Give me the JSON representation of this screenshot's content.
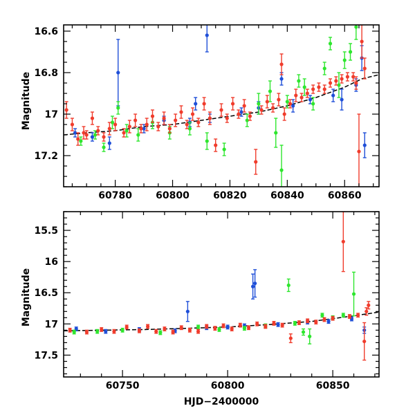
{
  "chart_data": [
    {
      "type": "scatter",
      "title": "",
      "xlabel": "",
      "ylabel": "Magnitude",
      "xlim": [
        60762,
        60872
      ],
      "ylim": [
        17.35,
        16.57
      ],
      "y_inverted": true,
      "grid": false,
      "xticks": [
        60780,
        60800,
        60820,
        60840,
        60860
      ],
      "yticks": [
        16.6,
        16.8,
        17,
        17.2
      ],
      "ytick_labels": [
        "16.6",
        "16.8",
        "17",
        "17.2"
      ],
      "colors": {
        "blue": "#1f4fd8",
        "green": "#2ee62e",
        "red": "#f03c2c",
        "fit": "#000000"
      },
      "trend": {
        "x": [
          60762,
          60770,
          60780,
          60790,
          60800,
          60810,
          60820,
          60830,
          60840,
          60850,
          60860,
          60866,
          60872
        ],
        "y": [
          17.1,
          17.09,
          17.08,
          17.06,
          17.05,
          17.03,
          17.01,
          16.99,
          16.96,
          16.92,
          16.87,
          16.83,
          16.81
        ]
      },
      "series": [
        {
          "color": "blue",
          "points": [
            [
              60766,
              17.09,
              0.02
            ],
            [
              60772,
              17.11,
              0.02
            ],
            [
              60778,
              17.14,
              0.03
            ],
            [
              60781,
              16.8,
              0.16
            ],
            [
              60790,
              17.07,
              0.02
            ],
            [
              60797,
              17.03,
              0.02
            ],
            [
              60806,
              17.04,
              0.02
            ],
            [
              60808,
              16.95,
              0.03
            ],
            [
              60812,
              16.62,
              0.08
            ],
            [
              60813,
              17.02,
              0.02
            ],
            [
              60824,
              16.99,
              0.02
            ],
            [
              60830,
              16.97,
              0.03
            ],
            [
              60838,
              16.83,
              0.03
            ],
            [
              60842,
              16.96,
              0.03
            ],
            [
              60848,
              16.93,
              0.02
            ],
            [
              60856,
              16.91,
              0.03
            ],
            [
              60859,
              16.93,
              0.05
            ],
            [
              60864,
              16.86,
              0.03
            ],
            [
              60866,
              16.73,
              0.06
            ],
            [
              60867,
              17.15,
              0.06
            ]
          ]
        },
        {
          "color": "green",
          "points": [
            [
              60768,
              17.13,
              0.02
            ],
            [
              60773,
              17.1,
              0.02
            ],
            [
              60776,
              17.16,
              0.02
            ],
            [
              60779,
              17.04,
              0.03
            ],
            [
              60781,
              16.97,
              0.03
            ],
            [
              60784,
              17.08,
              0.03
            ],
            [
              60788,
              17.1,
              0.03
            ],
            [
              60793,
              17.04,
              0.03
            ],
            [
              60799,
              17.09,
              0.03
            ],
            [
              60806,
              17.07,
              0.03
            ],
            [
              60812,
              17.13,
              0.04
            ],
            [
              60818,
              17.17,
              0.03
            ],
            [
              60826,
              17.03,
              0.03
            ],
            [
              60830,
              16.95,
              0.05
            ],
            [
              60834,
              16.89,
              0.05
            ],
            [
              60836,
              17.09,
              0.07
            ],
            [
              60838,
              17.27,
              0.12
            ],
            [
              60840,
              16.94,
              0.03
            ],
            [
              60844,
              16.84,
              0.03
            ],
            [
              60846,
              16.87,
              0.04
            ],
            [
              60849,
              16.95,
              0.03
            ],
            [
              60853,
              16.78,
              0.03
            ],
            [
              60855,
              16.66,
              0.03
            ],
            [
              60858,
              16.86,
              0.06
            ],
            [
              60860,
              16.74,
              0.04
            ],
            [
              60862,
              16.7,
              0.04
            ],
            [
              60864,
              16.58,
              0.06
            ]
          ]
        },
        {
          "color": "red",
          "points": [
            [
              60763,
              16.98,
              0.04
            ],
            [
              60765,
              17.05,
              0.03
            ],
            [
              60767,
              17.12,
              0.03
            ],
            [
              60769,
              17.09,
              0.03
            ],
            [
              60770,
              17.1,
              0.02
            ],
            [
              60772,
              17.02,
              0.03
            ],
            [
              60774,
              17.08,
              0.02
            ],
            [
              60776,
              17.11,
              0.02
            ],
            [
              60778,
              17.07,
              0.03
            ],
            [
              60780,
              17.05,
              0.03
            ],
            [
              60783,
              17.09,
              0.02
            ],
            [
              60785,
              17.06,
              0.03
            ],
            [
              60787,
              17.03,
              0.03
            ],
            [
              60789,
              17.07,
              0.02
            ],
            [
              60791,
              17.05,
              0.03
            ],
            [
              60793,
              17.01,
              0.03
            ],
            [
              60795,
              17.06,
              0.02
            ],
            [
              60797,
              17.02,
              0.03
            ],
            [
              60799,
              17.07,
              0.02
            ],
            [
              60801,
              17.03,
              0.03
            ],
            [
              60803,
              16.99,
              0.03
            ],
            [
              60805,
              17.05,
              0.02
            ],
            [
              60807,
              17.0,
              0.03
            ],
            [
              60809,
              17.04,
              0.02
            ],
            [
              60811,
              16.95,
              0.03
            ],
            [
              60813,
              17.02,
              0.03
            ],
            [
              60815,
              17.15,
              0.03
            ],
            [
              60817,
              16.98,
              0.03
            ],
            [
              60819,
              17.02,
              0.02
            ],
            [
              60821,
              16.95,
              0.03
            ],
            [
              60823,
              17.0,
              0.02
            ],
            [
              60825,
              16.96,
              0.03
            ],
            [
              60827,
              17.01,
              0.02
            ],
            [
              60829,
              17.23,
              0.06
            ],
            [
              60831,
              16.98,
              0.02
            ],
            [
              60833,
              16.94,
              0.03
            ],
            [
              60835,
              16.97,
              0.02
            ],
            [
              60837,
              16.93,
              0.03
            ],
            [
              60838,
              16.76,
              0.05
            ],
            [
              60839,
              17.0,
              0.03
            ],
            [
              60841,
              16.95,
              0.02
            ],
            [
              60843,
              16.91,
              0.03
            ],
            [
              60845,
              16.92,
              0.02
            ],
            [
              60847,
              16.9,
              0.02
            ],
            [
              60849,
              16.88,
              0.02
            ],
            [
              60851,
              16.87,
              0.02
            ],
            [
              60853,
              16.88,
              0.02
            ],
            [
              60855,
              16.85,
              0.02
            ],
            [
              60857,
              16.84,
              0.02
            ],
            [
              60859,
              16.83,
              0.02
            ],
            [
              60861,
              16.82,
              0.02
            ],
            [
              60863,
              16.82,
              0.02
            ],
            [
              60864,
              16.85,
              0.03
            ],
            [
              60865,
              17.18,
              0.18
            ],
            [
              60866,
              16.65,
              0.08
            ],
            [
              60867,
              16.78,
              0.05
            ]
          ]
        }
      ]
    },
    {
      "type": "scatter",
      "title": "",
      "xlabel": "HJD−2400000",
      "ylabel": "Magnitude",
      "xlim": [
        60722,
        60872
      ],
      "ylim": [
        17.85,
        15.2
      ],
      "y_inverted": true,
      "grid": false,
      "xticks": [
        60750,
        60800,
        60850
      ],
      "yticks": [
        15.5,
        16,
        16.5,
        17,
        17.5
      ],
      "ytick_labels": [
        "15.5",
        "16",
        "16.5",
        "17",
        "17.5"
      ],
      "colors": {
        "blue": "#1f4fd8",
        "green": "#2ee62e",
        "red": "#f03c2c",
        "fit": "#000000"
      },
      "trend": {
        "x": [
          60722,
          60740,
          60760,
          60780,
          60800,
          60820,
          60840,
          60860,
          60872
        ],
        "y": [
          17.11,
          17.1,
          17.09,
          17.07,
          17.05,
          17.01,
          16.96,
          16.87,
          16.81
        ]
      },
      "series": [
        {
          "color": "blue",
          "points": [
            [
              60728,
              17.08,
              0.03
            ],
            [
              60742,
              17.12,
              0.03
            ],
            [
              60758,
              17.09,
              0.03
            ],
            [
              60775,
              17.11,
              0.03
            ],
            [
              60781,
              16.8,
              0.16
            ],
            [
              60790,
              17.06,
              0.03
            ],
            [
              60800,
              17.05,
              0.03
            ],
            [
              60808,
              17.03,
              0.03
            ],
            [
              60812,
              16.4,
              0.2
            ],
            [
              60813,
              16.35,
              0.22
            ],
            [
              60824,
              17.01,
              0.03
            ],
            [
              60838,
              16.97,
              0.03
            ],
            [
              60848,
              16.96,
              0.03
            ],
            [
              60859,
              16.92,
              0.03
            ],
            [
              60865,
              17.1,
              0.05
            ]
          ]
        },
        {
          "color": "green",
          "points": [
            [
              60727,
              17.13,
              0.03
            ],
            [
              60738,
              17.12,
              0.03
            ],
            [
              60750,
              17.1,
              0.03
            ],
            [
              60768,
              17.14,
              0.03
            ],
            [
              60786,
              17.05,
              0.03
            ],
            [
              60796,
              17.09,
              0.03
            ],
            [
              60808,
              17.07,
              0.03
            ],
            [
              60818,
              17.03,
              0.03
            ],
            [
              60829,
              16.38,
              0.1
            ],
            [
              60832,
              16.99,
              0.03
            ],
            [
              60836,
              17.13,
              0.05
            ],
            [
              60839,
              17.2,
              0.12
            ],
            [
              60845,
              16.86,
              0.03
            ],
            [
              60850,
              16.9,
              0.03
            ],
            [
              60855,
              16.86,
              0.03
            ],
            [
              60860,
              16.52,
              0.35
            ]
          ]
        },
        {
          "color": "red",
          "points": [
            [
              60725,
              17.1,
              0.03
            ],
            [
              60733,
              17.13,
              0.03
            ],
            [
              60740,
              17.09,
              0.03
            ],
            [
              60746,
              17.12,
              0.03
            ],
            [
              60752,
              17.05,
              0.03
            ],
            [
              60758,
              17.11,
              0.03
            ],
            [
              60762,
              17.04,
              0.03
            ],
            [
              60766,
              17.12,
              0.03
            ],
            [
              60770,
              17.08,
              0.03
            ],
            [
              60774,
              17.13,
              0.03
            ],
            [
              60778,
              17.06,
              0.03
            ],
            [
              60782,
              17.1,
              0.03
            ],
            [
              60786,
              17.12,
              0.03
            ],
            [
              60790,
              17.04,
              0.03
            ],
            [
              60794,
              17.07,
              0.03
            ],
            [
              60798,
              17.03,
              0.03
            ],
            [
              60802,
              17.08,
              0.03
            ],
            [
              60806,
              17.02,
              0.03
            ],
            [
              60810,
              17.06,
              0.03
            ],
            [
              60814,
              17.0,
              0.03
            ],
            [
              60818,
              17.04,
              0.03
            ],
            [
              60822,
              16.99,
              0.03
            ],
            [
              60826,
              17.02,
              0.03
            ],
            [
              60830,
              17.23,
              0.07
            ],
            [
              60834,
              16.98,
              0.03
            ],
            [
              60838,
              16.95,
              0.03
            ],
            [
              60842,
              16.97,
              0.03
            ],
            [
              60846,
              16.93,
              0.03
            ],
            [
              60850,
              16.91,
              0.03
            ],
            [
              60855,
              15.68,
              0.48
            ],
            [
              60858,
              16.88,
              0.03
            ],
            [
              60862,
              16.86,
              0.03
            ],
            [
              60865,
              17.28,
              0.3
            ],
            [
              60866,
              16.8,
              0.06
            ],
            [
              60867,
              16.7,
              0.06
            ]
          ]
        }
      ]
    }
  ]
}
